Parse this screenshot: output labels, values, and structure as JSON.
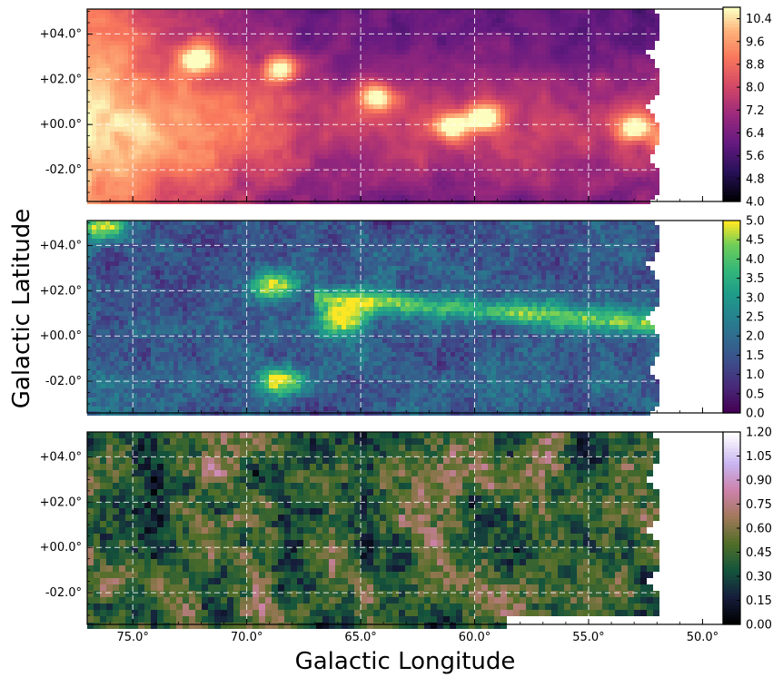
{
  "figure": {
    "xlabel": "Galactic Longitude",
    "ylabel": "Galactic Latitude",
    "x_ticks": [
      "75.0°",
      "70.0°",
      "65.0°",
      "60.0°",
      "55.0°",
      "50.0°"
    ],
    "y_ticks": [
      "+04.0°",
      "+02.0°",
      "+00.0°",
      "-02.0°"
    ]
  },
  "chart_data": [
    {
      "type": "heatmap",
      "name": "top-panel",
      "colormap": "magma",
      "x_range": [
        77.0,
        49.1
      ],
      "y_range": [
        -3.4,
        5.1
      ],
      "x_ticks": [
        75.0,
        70.0,
        65.0,
        60.0,
        55.0,
        50.0
      ],
      "y_ticks": [
        4.0,
        2.0,
        0.0,
        -2.0
      ],
      "grid": true,
      "colorbar_range": [
        4.0,
        10.8
      ],
      "colorbar_ticks": [
        "4.0",
        "4.8",
        "5.6",
        "6.4",
        "7.2",
        "8.0",
        "8.8",
        "9.6",
        "10.4"
      ],
      "colorbar_tick_values": [
        4.0,
        4.8,
        5.6,
        6.4,
        7.2,
        8.0,
        8.8,
        9.6,
        10.4
      ]
    },
    {
      "type": "heatmap",
      "name": "middle-panel",
      "colormap": "viridis",
      "x_range": [
        77.0,
        49.1
      ],
      "y_range": [
        -3.4,
        5.1
      ],
      "x_ticks": [
        75.0,
        70.0,
        65.0,
        60.0,
        55.0,
        50.0
      ],
      "y_ticks": [
        4.0,
        2.0,
        0.0,
        -2.0
      ],
      "grid": true,
      "colorbar_range": [
        0.0,
        5.0
      ],
      "colorbar_ticks": [
        "0.0",
        "0.5",
        "1.0",
        "1.5",
        "2.0",
        "2.5",
        "3.0",
        "3.5",
        "4.0",
        "4.5",
        "5.0"
      ],
      "colorbar_tick_values": [
        0.0,
        0.5,
        1.0,
        1.5,
        2.0,
        2.5,
        3.0,
        3.5,
        4.0,
        4.5,
        5.0
      ]
    },
    {
      "type": "heatmap",
      "name": "bottom-panel",
      "colormap": "cubehelix",
      "x_range": [
        77.0,
        49.1
      ],
      "y_range": [
        -3.4,
        5.1
      ],
      "x_ticks": [
        75.0,
        70.0,
        65.0,
        60.0,
        55.0,
        50.0
      ],
      "y_ticks": [
        4.0,
        2.0,
        0.0,
        -2.0
      ],
      "grid": true,
      "colorbar_range": [
        0.0,
        1.2
      ],
      "colorbar_ticks": [
        "0.00",
        "0.15",
        "0.30",
        "0.45",
        "0.60",
        "0.75",
        "0.90",
        "1.05",
        "1.20"
      ],
      "colorbar_tick_values": [
        0.0,
        0.15,
        0.3,
        0.45,
        0.6,
        0.75,
        0.9,
        1.05,
        1.2
      ]
    }
  ]
}
